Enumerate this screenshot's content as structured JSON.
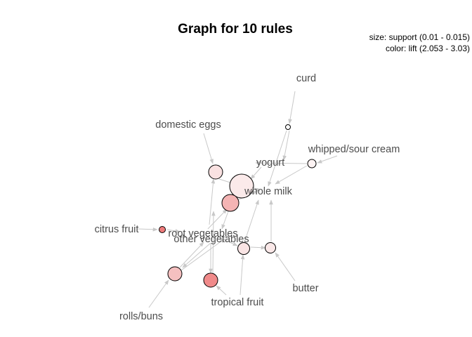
{
  "title": "Graph for 10 rules",
  "legend": {
    "size": "size: support (0.01 - 0.015)",
    "color": "color: lift (2.053 - 3.03)"
  },
  "colors": {
    "edge": "#c8c8c8",
    "label": "#4d4d4d",
    "node_border": "#000000"
  },
  "items": [
    {
      "id": "curd",
      "label": "curd"
    },
    {
      "id": "domestic-eggs",
      "label": "domestic eggs"
    },
    {
      "id": "whipped-sour-cream",
      "label": "whipped/sour cream"
    },
    {
      "id": "yogurt",
      "label": "yogurt"
    },
    {
      "id": "whole-milk",
      "label": "whole milk"
    },
    {
      "id": "citrus-fruit",
      "label": "citrus fruit"
    },
    {
      "id": "root-vegetables",
      "label": "root vegetables"
    },
    {
      "id": "other-vegetables",
      "label": "other vegetables"
    },
    {
      "id": "butter",
      "label": "butter"
    },
    {
      "id": "tropical-fruit",
      "label": "tropical fruit"
    },
    {
      "id": "rolls-buns",
      "label": "rolls/buns"
    }
  ],
  "rules": [
    {
      "id": "r1",
      "fill": "#f9e1e1"
    },
    {
      "id": "r2",
      "fill": "#fbeaea"
    },
    {
      "id": "r3",
      "fill": "#f4b4b4"
    },
    {
      "id": "r4",
      "fill": "#fdf3f3"
    },
    {
      "id": "r5",
      "fill": "#fefefe"
    },
    {
      "id": "r6",
      "fill": "#ee7b7b"
    },
    {
      "id": "r7",
      "fill": "#f9e4e4"
    },
    {
      "id": "r8",
      "fill": "#fae8e8"
    },
    {
      "id": "r9",
      "fill": "#f5c0c0"
    },
    {
      "id": "r10",
      "fill": "#f08a8a"
    }
  ]
}
